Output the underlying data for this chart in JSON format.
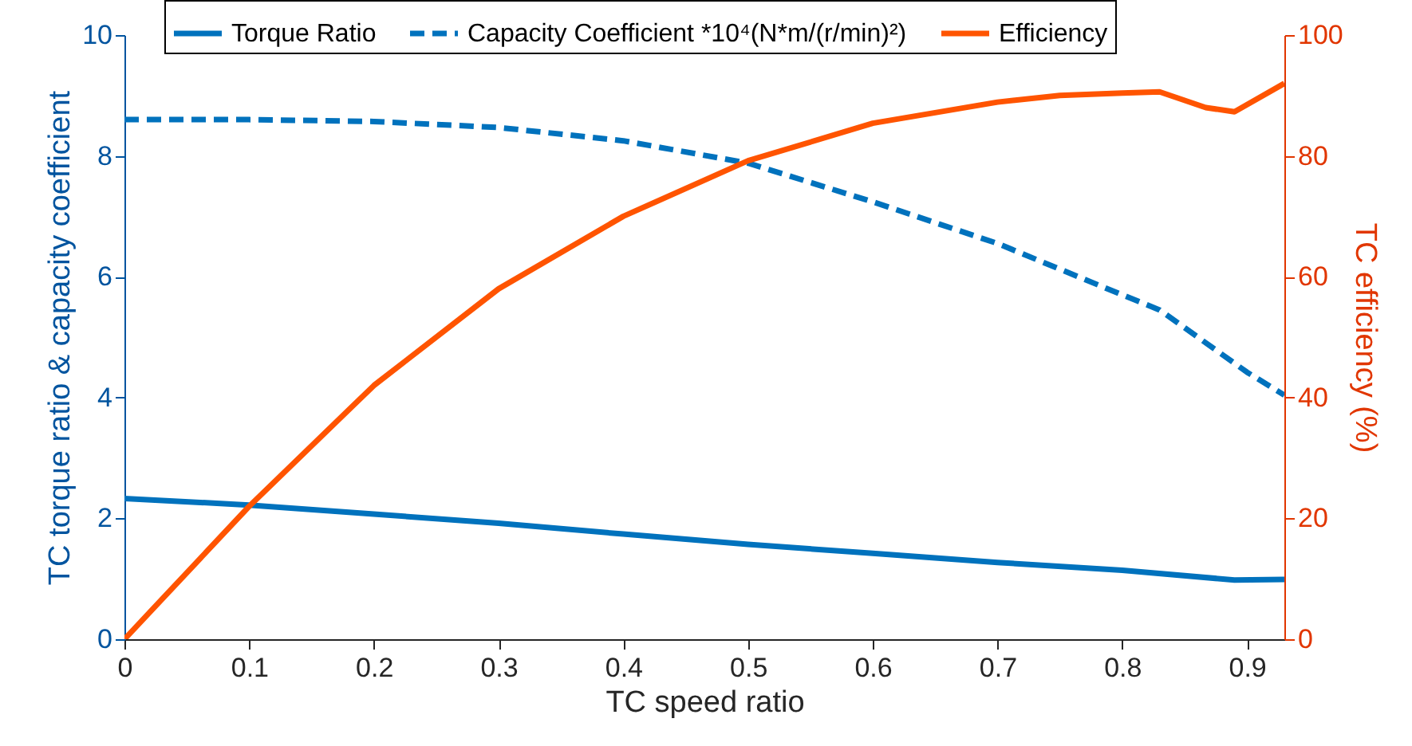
{
  "chart_data": {
    "type": "line",
    "xlabel": "TC speed ratio",
    "ylabel": "TC torque ratio & capacity coefficient",
    "y2label": "TC efficiency (%)",
    "xlim": [
      0,
      0.93
    ],
    "xticks": [
      0,
      0.1,
      0.2,
      0.3,
      0.4,
      0.5,
      0.6,
      0.7,
      0.8,
      0.9
    ],
    "ylim": [
      0,
      10
    ],
    "yticks": [
      0,
      2,
      4,
      6,
      8,
      10
    ],
    "y2lim": [
      0,
      100
    ],
    "y2ticks": [
      0,
      20,
      40,
      60,
      80,
      100
    ],
    "legend": "top",
    "grid": false,
    "series": [
      {
        "name": "Torque Ratio",
        "color": "#0072bd",
        "line_style": "solid",
        "x": [
          0,
          0.1,
          0.2,
          0.3,
          0.4,
          0.5,
          0.6,
          0.7,
          0.8,
          0.89,
          0.93
        ],
        "values": [
          2.33,
          2.22,
          2.07,
          1.92,
          1.74,
          1.57,
          1.42,
          1.27,
          1.14,
          0.98,
          0.99
        ]
      },
      {
        "name": "Capacity Coefficient *10⁴(N*m/(r/min)²)",
        "color": "#0072bd",
        "line_style": "dashed",
        "x": [
          0,
          0.1,
          0.2,
          0.3,
          0.4,
          0.5,
          0.6,
          0.7,
          0.8,
          0.83,
          0.9,
          0.93
        ],
        "values": [
          8.6,
          8.6,
          8.57,
          8.47,
          8.25,
          7.88,
          7.24,
          6.55,
          5.7,
          5.45,
          4.42,
          4.04
        ]
      },
      {
        "name": "Efficiency",
        "color": "#ff5400",
        "line_style": "solid",
        "axis": "y2",
        "x": [
          0,
          0.1,
          0.2,
          0.3,
          0.4,
          0.5,
          0.6,
          0.7,
          0.75,
          0.8,
          0.83,
          0.867,
          0.89,
          0.93
        ],
        "values": [
          0,
          22,
          42,
          58,
          70,
          79.2,
          85.4,
          88.9,
          90,
          90.4,
          90.6,
          88,
          87.3,
          92
        ]
      }
    ]
  }
}
